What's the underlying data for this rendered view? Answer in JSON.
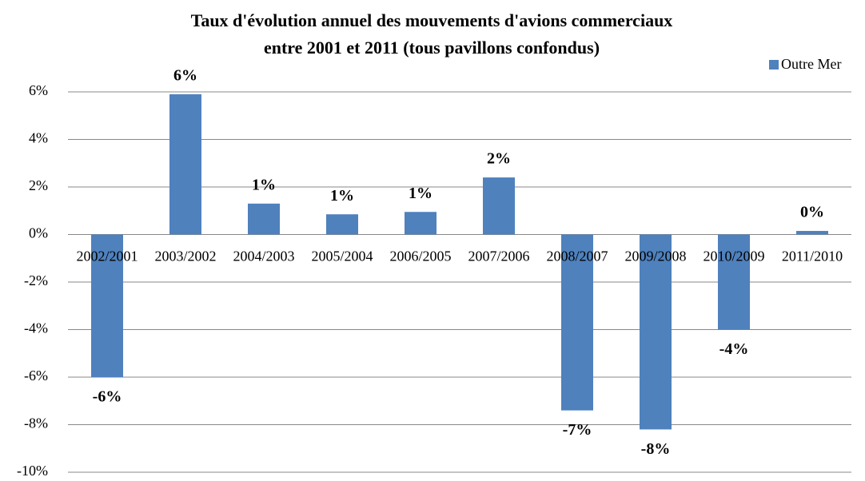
{
  "chart_data": {
    "type": "bar",
    "title": "Taux d'évolution annuel des mouvements d'avions commerciaux",
    "subtitle": "entre 2001 et 2011 (tous pavillons confondus)",
    "categories": [
      "2002/2001",
      "2003/2002",
      "2004/2003",
      "2005/2004",
      "2006/2005",
      "2007/2006",
      "2008/2007",
      "2009/2008",
      "2010/2009",
      "2011/2010"
    ],
    "series": [
      {
        "name": "Outre Mer",
        "color": "#4f81bd",
        "values": [
          -6.0,
          5.9,
          1.3,
          0.85,
          0.95,
          2.4,
          -7.4,
          -8.2,
          -4.0,
          0.15
        ],
        "value_labels": [
          "-6%",
          "6%",
          "1%",
          "1%",
          "1%",
          "2%",
          "-7%",
          "-8%",
          "-4%",
          "0%"
        ]
      }
    ],
    "ylim": [
      -10,
      6
    ],
    "yticks": [
      {
        "value": -10,
        "label": "-10%"
      },
      {
        "value": -8,
        "label": "-8%"
      },
      {
        "value": -6,
        "label": "-6%"
      },
      {
        "value": -4,
        "label": "-4%"
      },
      {
        "value": -2,
        "label": "-2%"
      },
      {
        "value": 0,
        "label": "0%"
      },
      {
        "value": 2,
        "label": "2%"
      },
      {
        "value": 4,
        "label": "4%"
      },
      {
        "value": 6,
        "label": "6%"
      }
    ],
    "grid": true,
    "legend": "top-right"
  }
}
